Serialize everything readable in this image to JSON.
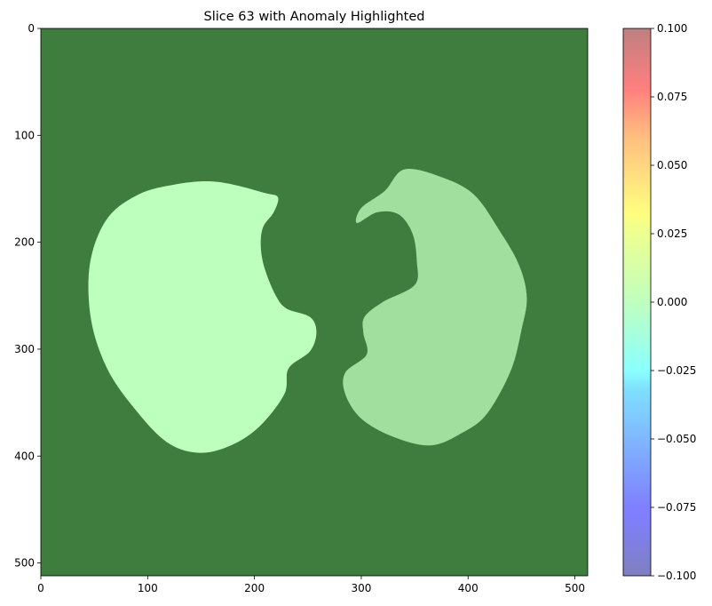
{
  "chart_data": {
    "type": "heatmap",
    "title": "Slice 63 with Anomaly Highlighted",
    "xlabel": "",
    "ylabel": "",
    "xlim": [
      0,
      512
    ],
    "ylim": [
      512,
      0
    ],
    "x_ticks": [
      0,
      100,
      200,
      300,
      400,
      500
    ],
    "y_ticks": [
      0,
      100,
      200,
      300,
      400,
      500
    ],
    "colorbar": {
      "range": [
        -0.1,
        0.1
      ],
      "ticks": [
        "0.100",
        "0.075",
        "0.050",
        "0.025",
        "0.000",
        "−0.025",
        "−0.050",
        "−0.075",
        "−0.100"
      ],
      "colormap": "jet",
      "alpha": 0.5
    },
    "colors": {
      "background": "#3e7d3e",
      "left_lung": "#bdffbd",
      "right_lung": "#a0df9e"
    },
    "regions": [
      {
        "name": "left-lung",
        "outline": [
          [
            155,
            143
          ],
          [
            180,
            146
          ],
          [
            210,
            154
          ],
          [
            222,
            158
          ],
          [
            218,
            172
          ],
          [
            208,
            186
          ],
          [
            206,
            205
          ],
          [
            210,
            226
          ],
          [
            220,
            250
          ],
          [
            230,
            262
          ],
          [
            252,
            270
          ],
          [
            258,
            284
          ],
          [
            252,
            302
          ],
          [
            232,
            318
          ],
          [
            228,
            342
          ],
          [
            205,
            372
          ],
          [
            178,
            390
          ],
          [
            148,
            397
          ],
          [
            118,
            387
          ],
          [
            88,
            356
          ],
          [
            62,
            318
          ],
          [
            47,
            272
          ],
          [
            46,
            220
          ],
          [
            62,
            178
          ],
          [
            92,
            155
          ],
          [
            125,
            146
          ]
        ]
      },
      {
        "name": "right-lung",
        "outline": [
          [
            340,
            132
          ],
          [
            372,
            138
          ],
          [
            405,
            155
          ],
          [
            430,
            190
          ],
          [
            448,
            222
          ],
          [
            455,
            252
          ],
          [
            450,
            282
          ],
          [
            440,
            320
          ],
          [
            418,
            360
          ],
          [
            395,
            378
          ],
          [
            365,
            390
          ],
          [
            330,
            382
          ],
          [
            300,
            365
          ],
          [
            285,
            342
          ],
          [
            285,
            322
          ],
          [
            305,
            305
          ],
          [
            302,
            285
          ],
          [
            303,
            270
          ],
          [
            320,
            256
          ],
          [
            350,
            240
          ],
          [
            352,
            218
          ],
          [
            348,
            192
          ],
          [
            335,
            174
          ],
          [
            315,
            172
          ],
          [
            296,
            182
          ],
          [
            300,
            168
          ],
          [
            322,
            152
          ]
        ]
      }
    ]
  }
}
